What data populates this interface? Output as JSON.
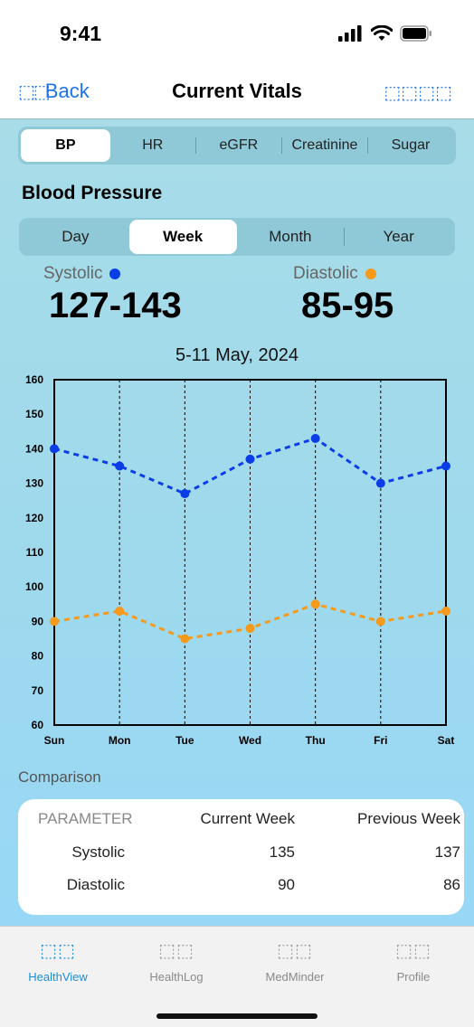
{
  "status_bar": {
    "time": "9:41"
  },
  "nav": {
    "back_glyph": "⬚⬚",
    "back_label": "Back",
    "title": "Current Vitals",
    "right_icons": [
      "share-icon",
      "more-icon"
    ],
    "right_glyphs": "⬚⬚⬚⬚"
  },
  "vital_tabs": [
    "BP",
    "HR",
    "eGFR",
    "Creatinine",
    "Sugar"
  ],
  "vital_tab_active": "BP",
  "section_title": "Blood Pressure",
  "range_tabs": [
    "Day",
    "Week",
    "Month",
    "Year"
  ],
  "range_tab_active": "Week",
  "metrics": {
    "systolic": {
      "label": "Systolic",
      "value": "127-143",
      "color": "#0a3de8"
    },
    "diastolic": {
      "label": "Diastolic",
      "value": "85-95",
      "color": "#f59a1b"
    }
  },
  "date_range": "5-11 May, 2024",
  "chart_data": {
    "type": "line",
    "x": [
      "Sun",
      "Mon",
      "Tue",
      "Wed",
      "Thu",
      "Fri",
      "Sat"
    ],
    "ylim": [
      60,
      160
    ],
    "yticks": [
      60,
      70,
      80,
      90,
      100,
      110,
      120,
      130,
      140,
      150,
      160
    ],
    "grid": "vertical dashed",
    "series": [
      {
        "values": [
          140,
          135,
          127,
          137,
          143,
          130,
          135
        ],
        "color": "#0a3de8"
      },
      {
        "values": [
          90,
          93,
          85,
          88,
          95,
          90,
          93
        ],
        "color": "#f59a1b"
      }
    ]
  },
  "comparison": {
    "title": "Comparison",
    "headers": [
      "PARAMETER",
      "Current Week",
      "Previous Week"
    ],
    "rows": [
      [
        "Systolic",
        "135",
        "137"
      ],
      [
        "Diastolic",
        "90",
        "86"
      ]
    ]
  },
  "tabbar": {
    "items": [
      {
        "label": "HealthView",
        "icon": "health-view-icon",
        "glyph": "⬚⬚",
        "active": true
      },
      {
        "label": "HealthLog",
        "icon": "health-log-icon",
        "glyph": "⬚⬚",
        "active": false
      },
      {
        "label": "MedMinder",
        "icon": "med-minder-icon",
        "glyph": "⬚⬚",
        "active": false
      },
      {
        "label": "Profile",
        "icon": "profile-icon",
        "glyph": "⬚⬚",
        "active": false
      }
    ]
  }
}
